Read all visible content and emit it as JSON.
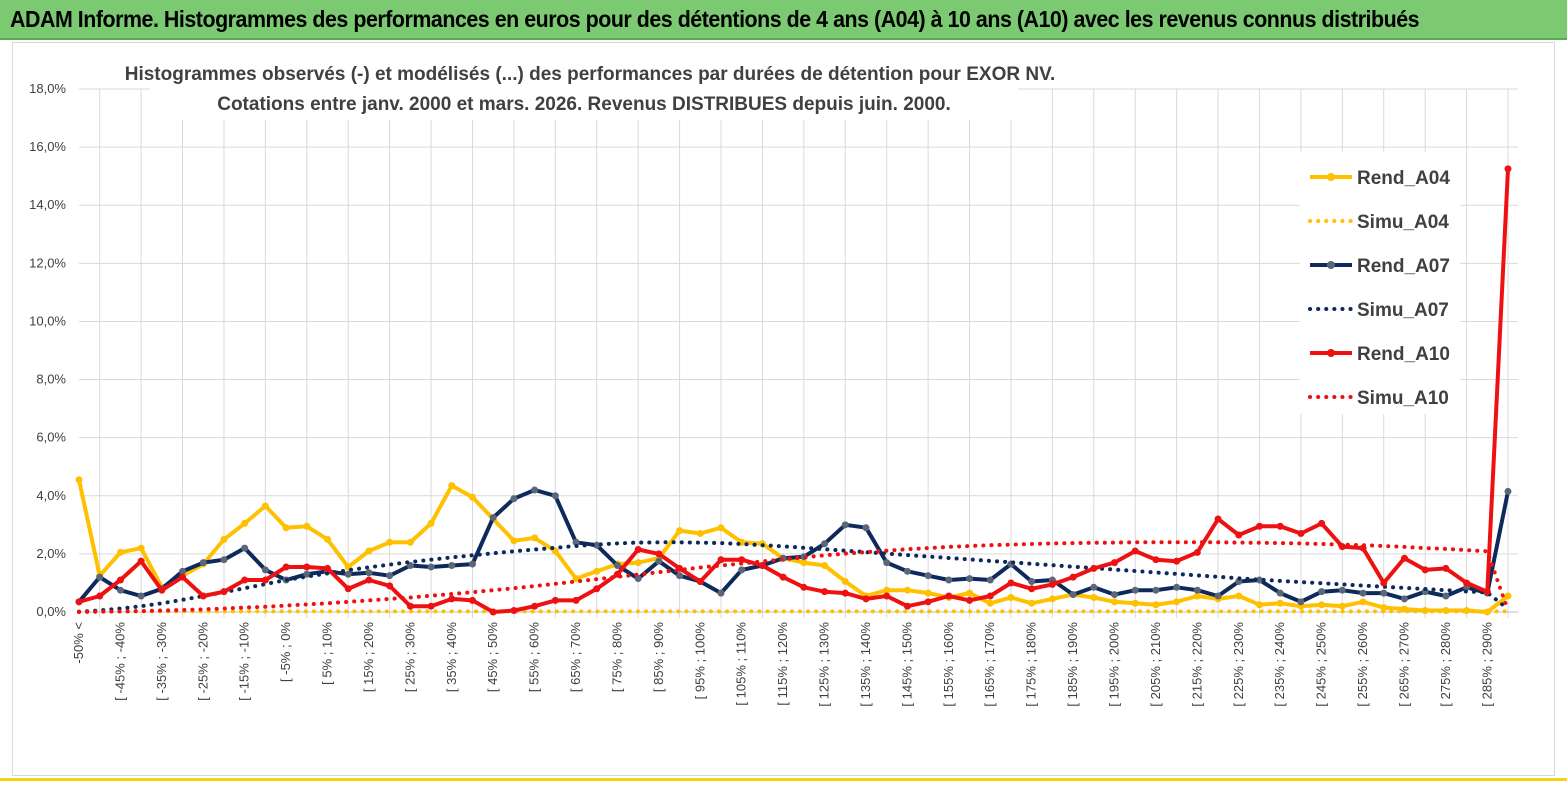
{
  "header": {
    "title": "ADAM Informe. Histogrammes des performances en euros pour des détentions de 4 ans (A04) à 10 ans (A10) avec les revenus connus distribués"
  },
  "colors": {
    "header_bg": "#7bc970",
    "yellow": "#ffc000",
    "navy": "#0e2a5c",
    "red": "#ee1111",
    "grid": "#d9d9d9"
  },
  "chart_data": {
    "type": "line",
    "title_line1": "Histogrammes observés (-) et modélisés (...) des performances par durées de détention pour EXOR NV.",
    "title_line2": "Cotations entre janv. 2000 et mars. 2026. Revenus DISTRIBUES depuis juin. 2000.",
    "ylabel": "",
    "xlabel": "",
    "ylim": [
      0,
      18
    ],
    "yticks": [
      "0,0%",
      "2,0%",
      "4,0%",
      "6,0%",
      "8,0%",
      "10,0%",
      "12,0%",
      "14,0%",
      "16,0%",
      "18,0%"
    ],
    "xtick_labels": [
      "-50% <",
      "[ -45% ; -40%",
      "[ -35% ; -30%",
      "[ -25% ; -20%",
      "[ -15% ; -10%",
      "[ -5% ; 0%",
      "[ 5% ; 10%",
      "[ 15% ; 20%",
      "[ 25% ; 30%",
      "[ 35% ; 40%",
      "[ 45% ; 50%",
      "[ 55% ; 60%",
      "[ 65% ; 70%",
      "[ 75% ; 80%",
      "[ 85% ; 90%",
      "[ 95% ; 100%",
      "[ 105% ; 110%",
      "[ 115% ; 120%",
      "[ 125% ; 130%",
      "[ 135% ; 140%",
      "[ 145% ; 150%",
      "[ 155% ; 160%",
      "[ 165% ; 170%",
      "[ 175% ; 180%",
      "[ 185% ; 190%",
      "[ 195% ; 200%",
      "[ 205% ; 210%",
      "[ 215% ; 220%",
      "[ 225% ; 230%",
      "[ 235% ; 240%",
      "[ 245% ; 250%",
      "[ 255% ; 260%",
      "[ 265% ; 270%",
      "[ 275% ; 280%",
      "[ 285% ; 290%"
    ],
    "n_points": 70,
    "legend_position": "right",
    "series": [
      {
        "name": "Rend_A04",
        "style": "solid-markers",
        "color": "#ffc000",
        "values": [
          4.55,
          1.25,
          2.05,
          2.2,
          0.85,
          1.25,
          1.65,
          2.5,
          3.05,
          3.65,
          2.9,
          2.95,
          2.5,
          1.55,
          2.1,
          2.4,
          2.4,
          3.05,
          4.35,
          3.95,
          3.2,
          2.45,
          2.55,
          2.1,
          1.15,
          1.4,
          1.65,
          1.7,
          1.85,
          2.8,
          2.7,
          2.9,
          2.4,
          2.35,
          1.85,
          1.7,
          1.6,
          1.05,
          0.55,
          0.75,
          0.75,
          0.65,
          0.5,
          0.65,
          0.3,
          0.5,
          0.3,
          0.45,
          0.6,
          0.5,
          0.35,
          0.3,
          0.25,
          0.35,
          0.55,
          0.45,
          0.55,
          0.25,
          0.3,
          0.2,
          0.25,
          0.2,
          0.35,
          0.15,
          0.1,
          0.05,
          0.05,
          0.05,
          0.0,
          0.55
        ]
      },
      {
        "name": "Simu_A04",
        "style": "dotted",
        "color": "#ffc000",
        "values": [
          0.02,
          0.02,
          0.02,
          0.02,
          0.02,
          0.02,
          0.02,
          0.02,
          0.02,
          0.02,
          0.02,
          0.02,
          0.02,
          0.02,
          0.02,
          0.02,
          0.02,
          0.02,
          0.02,
          0.02,
          0.02,
          0.02,
          0.02,
          0.02,
          0.02,
          0.02,
          0.02,
          0.02,
          0.02,
          0.02,
          0.02,
          0.02,
          0.02,
          0.02,
          0.02,
          0.02,
          0.02,
          0.02,
          0.02,
          0.02,
          0.02,
          0.02,
          0.02,
          0.02,
          0.02,
          0.02,
          0.02,
          0.02,
          0.02,
          0.02,
          0.02,
          0.02,
          0.02,
          0.02,
          0.02,
          0.02,
          0.02,
          0.02,
          0.02,
          0.02,
          0.02,
          0.02,
          0.02,
          0.02,
          0.02,
          0.02,
          0.02,
          0.02,
          0.02,
          0.02
        ]
      },
      {
        "name": "Rend_A07",
        "style": "solid-markers",
        "color": "#0e2a5c",
        "values": [
          0.35,
          1.2,
          0.75,
          0.55,
          0.8,
          1.4,
          1.7,
          1.8,
          2.2,
          1.45,
          1.1,
          1.3,
          1.4,
          1.3,
          1.35,
          1.25,
          1.6,
          1.55,
          1.6,
          1.65,
          3.25,
          3.9,
          4.2,
          4.0,
          2.4,
          2.3,
          1.6,
          1.15,
          1.75,
          1.25,
          1.05,
          0.65,
          1.45,
          1.6,
          1.85,
          1.9,
          2.35,
          3.0,
          2.9,
          1.7,
          1.4,
          1.25,
          1.1,
          1.15,
          1.1,
          1.65,
          1.05,
          1.1,
          0.6,
          0.85,
          0.6,
          0.75,
          0.75,
          0.85,
          0.75,
          0.55,
          1.05,
          1.1,
          0.65,
          0.35,
          0.7,
          0.75,
          0.65,
          0.65,
          0.45,
          0.7,
          0.55,
          0.85,
          0.65,
          4.15
        ]
      },
      {
        "name": "Simu_A07",
        "style": "dotted",
        "color": "#0e2a5c",
        "values": [
          0.01,
          0.05,
          0.12,
          0.2,
          0.3,
          0.42,
          0.55,
          0.68,
          0.82,
          0.96,
          1.1,
          1.22,
          1.33,
          1.44,
          1.54,
          1.63,
          1.72,
          1.8,
          1.88,
          1.95,
          2.02,
          2.09,
          2.15,
          2.21,
          2.27,
          2.32,
          2.36,
          2.39,
          2.4,
          2.4,
          2.39,
          2.37,
          2.34,
          2.3,
          2.26,
          2.21,
          2.16,
          2.11,
          2.06,
          2.01,
          1.96,
          1.91,
          1.86,
          1.81,
          1.76,
          1.71,
          1.66,
          1.61,
          1.56,
          1.51,
          1.46,
          1.41,
          1.36,
          1.31,
          1.26,
          1.21,
          1.16,
          1.11,
          1.07,
          1.03,
          0.99,
          0.95,
          0.91,
          0.87,
          0.83,
          0.79,
          0.75,
          0.71,
          0.67,
          0.1
        ]
      },
      {
        "name": "Rend_A10",
        "style": "solid-markers",
        "color": "#ee1111",
        "values": [
          0.35,
          0.55,
          1.1,
          1.75,
          0.75,
          1.2,
          0.55,
          0.7,
          1.1,
          1.1,
          1.55,
          1.55,
          1.5,
          0.8,
          1.1,
          0.9,
          0.2,
          0.2,
          0.45,
          0.4,
          0.0,
          0.05,
          0.2,
          0.4,
          0.4,
          0.8,
          1.3,
          2.15,
          2.0,
          1.5,
          1.05,
          1.8,
          1.8,
          1.6,
          1.2,
          0.85,
          0.7,
          0.65,
          0.45,
          0.55,
          0.2,
          0.35,
          0.55,
          0.4,
          0.55,
          1.0,
          0.8,
          0.95,
          1.2,
          1.5,
          1.7,
          2.1,
          1.8,
          1.75,
          2.05,
          3.2,
          2.65,
          2.95,
          2.95,
          2.7,
          3.05,
          2.25,
          2.2,
          1.0,
          1.85,
          1.45,
          1.5,
          1.0,
          0.7,
          15.25
        ]
      },
      {
        "name": "Simu_A10",
        "style": "dotted",
        "color": "#ee1111",
        "values": [
          0.0,
          0.01,
          0.02,
          0.03,
          0.05,
          0.07,
          0.09,
          0.12,
          0.15,
          0.18,
          0.22,
          0.26,
          0.3,
          0.35,
          0.4,
          0.45,
          0.5,
          0.56,
          0.62,
          0.68,
          0.75,
          0.82,
          0.89,
          0.97,
          1.05,
          1.13,
          1.21,
          1.29,
          1.37,
          1.45,
          1.53,
          1.6,
          1.67,
          1.74,
          1.81,
          1.88,
          1.95,
          2.01,
          2.06,
          2.11,
          2.16,
          2.2,
          2.24,
          2.27,
          2.3,
          2.32,
          2.34,
          2.36,
          2.37,
          2.38,
          2.39,
          2.4,
          2.4,
          2.4,
          2.4,
          2.4,
          2.39,
          2.38,
          2.37,
          2.36,
          2.34,
          2.32,
          2.3,
          2.27,
          2.24,
          2.2,
          2.17,
          2.13,
          2.09,
          0.05
        ]
      }
    ]
  }
}
